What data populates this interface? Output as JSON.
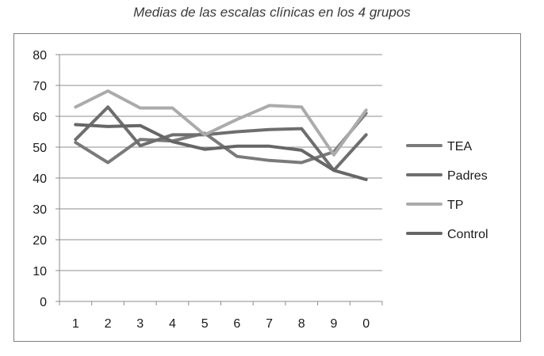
{
  "chart_data": {
    "type": "line",
    "title": "Medias de las escalas clínicas en los 4 grupos",
    "xlabel": "",
    "ylabel": "",
    "categories": [
      "1",
      "2",
      "3",
      "4",
      "5",
      "6",
      "7",
      "8",
      "9",
      "0"
    ],
    "ylim": [
      0,
      80
    ],
    "yticks": [
      0,
      10,
      20,
      30,
      40,
      50,
      60,
      70,
      80
    ],
    "grid": true,
    "legend_position": "right",
    "series": [
      {
        "name": "TEA",
        "color": "#7a7a7a",
        "values": [
          51.5,
          45,
          52.5,
          52,
          54.5,
          47,
          45.7,
          45,
          48.5,
          61
        ]
      },
      {
        "name": "Padres",
        "color": "#6e6e6e",
        "values": [
          52.5,
          63,
          50.5,
          54,
          54,
          55,
          55.7,
          56,
          42.5,
          54
        ]
      },
      {
        "name": "TP",
        "color": "#ababab",
        "values": [
          63,
          68.2,
          62.7,
          62.7,
          54,
          59,
          63.5,
          63,
          47.5,
          62
        ]
      },
      {
        "name": "Control",
        "color": "#666666",
        "values": [
          57.3,
          56.7,
          57,
          51.8,
          49.3,
          50.3,
          50.3,
          49,
          42.5,
          39.5
        ]
      }
    ]
  }
}
